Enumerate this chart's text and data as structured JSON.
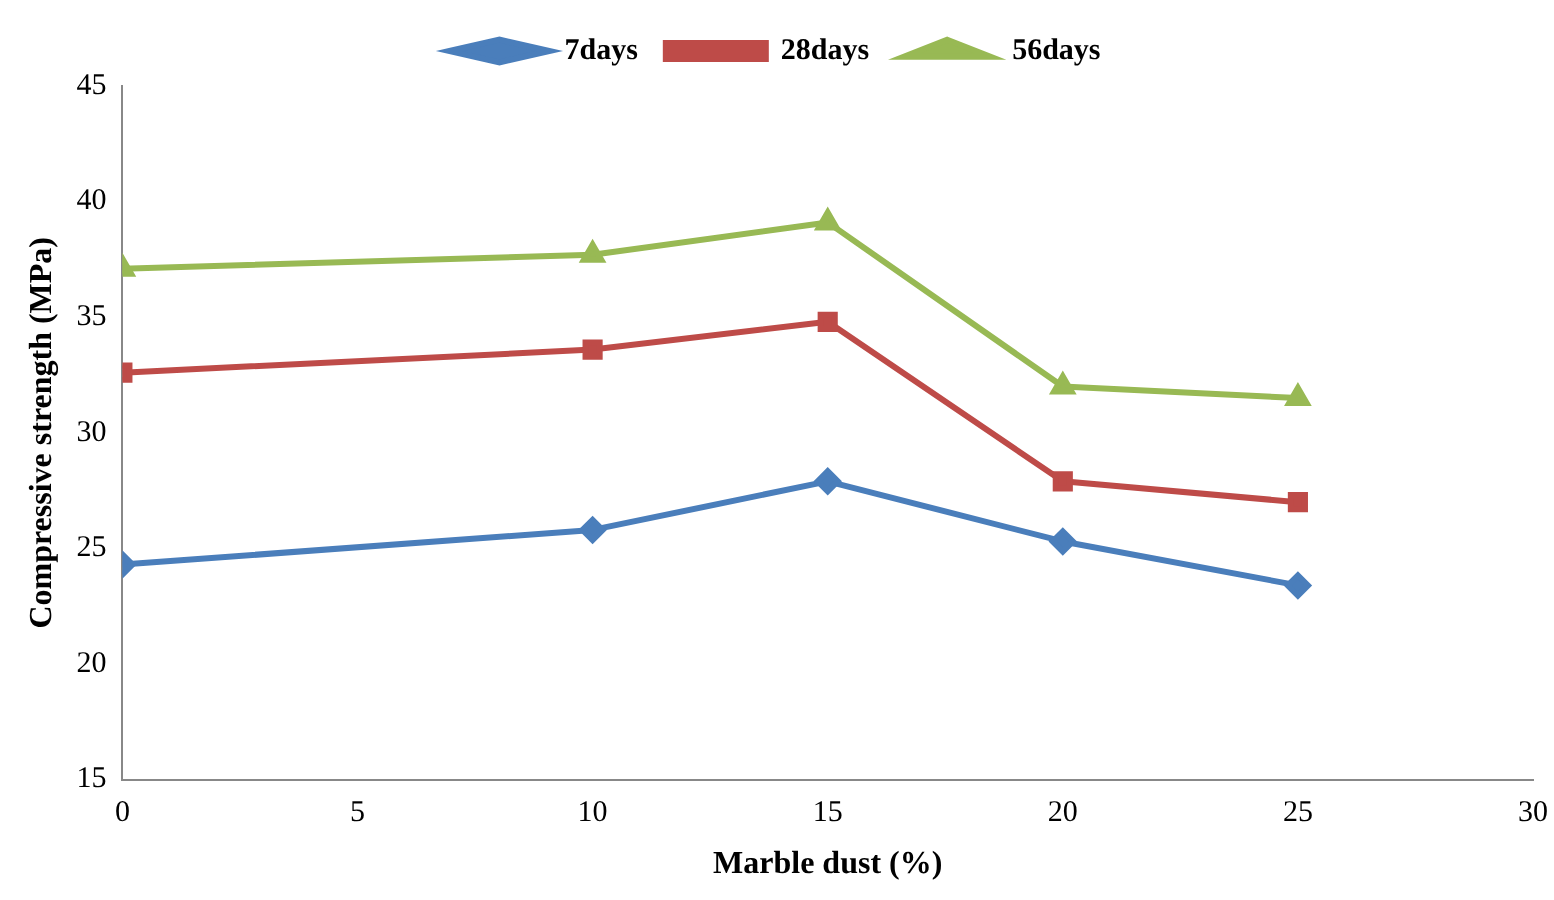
{
  "chart_data": {
    "type": "line",
    "xlabel": "Marble dust (%)",
    "ylabel": "Compressive strength (MPa)",
    "x": [
      0,
      10,
      15,
      20,
      25
    ],
    "xlim": [
      0,
      30
    ],
    "xticks": [
      0,
      5,
      10,
      15,
      20,
      25,
      30
    ],
    "ylim": [
      15,
      45
    ],
    "yticks": [
      15,
      20,
      25,
      30,
      35,
      40,
      45
    ],
    "grid": false,
    "legend": "top",
    "line_style": "solid",
    "series": [
      {
        "name": "7days",
        "color": "#4a7ebb",
        "marker": "diamond",
        "values": [
          24.3,
          25.8,
          27.9,
          25.3,
          23.4
        ]
      },
      {
        "name": "28days",
        "color": "#be4b48",
        "marker": "square",
        "values": [
          32.6,
          33.6,
          34.8,
          27.9,
          27.0
        ]
      },
      {
        "name": "56days",
        "color": "#98b954",
        "marker": "triangle",
        "values": [
          37.1,
          37.7,
          39.1,
          32.0,
          31.5
        ]
      }
    ]
  }
}
